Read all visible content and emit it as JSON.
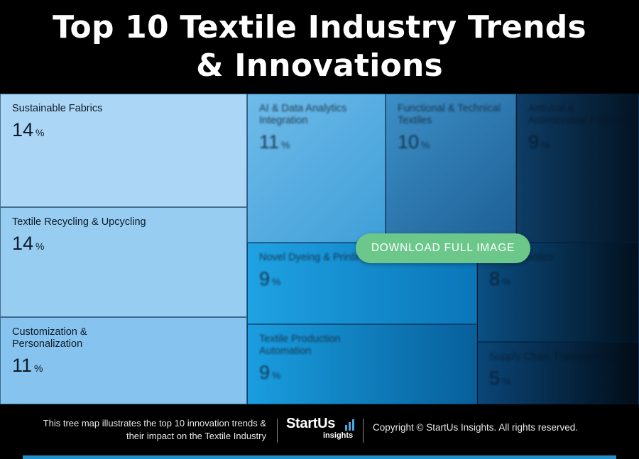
{
  "header": {
    "title_line1": "Top 10 Textile Industry Trends",
    "title_line2": "& Innovations"
  },
  "chart_data": {
    "type": "treemap",
    "unit": "%",
    "items": [
      {
        "label": "Sustainable Fabrics",
        "value": 14
      },
      {
        "label": "Textile Recycling & Upcycling",
        "value": 14
      },
      {
        "label": "Customization & Personalization",
        "value": 11
      },
      {
        "label": "AI & Data Analytics Integration",
        "value": 11
      },
      {
        "label": "Functional & Technical Textiles",
        "value": 10
      },
      {
        "label": "Antiviral & Antimicrobial Fabrics",
        "value": 9
      },
      {
        "label": "Novel Dyeing & Printing",
        "value": 9
      },
      {
        "label": "Textile Production Automation",
        "value": 9
      },
      {
        "label": "Smart Textiles",
        "value": 8
      },
      {
        "label": "Supply Chain Transparency",
        "value": 5
      }
    ]
  },
  "overlay": {
    "download_label": "DOWNLOAD FULL IMAGE"
  },
  "footer": {
    "caption_line1": "This tree map illustrates the top 10 innovation trends &",
    "caption_line2": "their impact on the Textile Industry",
    "logo_brand": "StartUs",
    "logo_sub": "insights",
    "copyright": "Copyright © StartUs Insights. All rights reserved."
  },
  "colors": {
    "accent": "#6cc88a",
    "bar": "#1e90d0"
  }
}
